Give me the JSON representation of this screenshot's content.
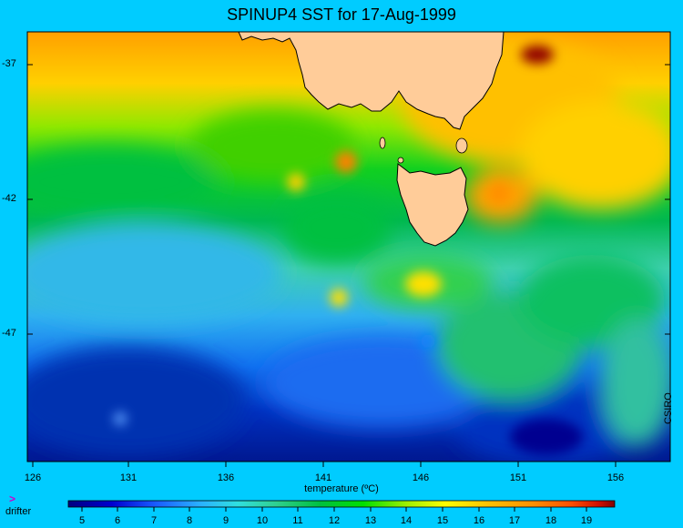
{
  "title": "SPINUP4 SST for 17-Aug-1999",
  "credit": "CSIRO",
  "legend": {
    "drifter_label": "drifter",
    "drifter_symbol": ">"
  },
  "axes": {
    "y_ticks": [
      "-37",
      "-42",
      "-47"
    ],
    "x_ticks": [
      "126",
      "131",
      "136",
      "141",
      "146",
      "151",
      "156"
    ],
    "xlabel": "temperature (ºC)"
  },
  "colorbar": {
    "ticks": [
      "5",
      "6",
      "7",
      "8",
      "9",
      "10",
      "11",
      "12",
      "13",
      "14",
      "15",
      "16",
      "17",
      "18",
      "19"
    ],
    "colors": [
      "#000080",
      "#0000d0",
      "#1a5cff",
      "#2ab0ff",
      "#30e0e0",
      "#30d090",
      "#00c040",
      "#00e000",
      "#a0f000",
      "#ffff00",
      "#ffc000",
      "#ff9000",
      "#ff5000",
      "#d01000",
      "#800000"
    ]
  },
  "colors": {
    "background": "#00ccff",
    "land": "#ffcc99",
    "coast": "#000000"
  }
}
